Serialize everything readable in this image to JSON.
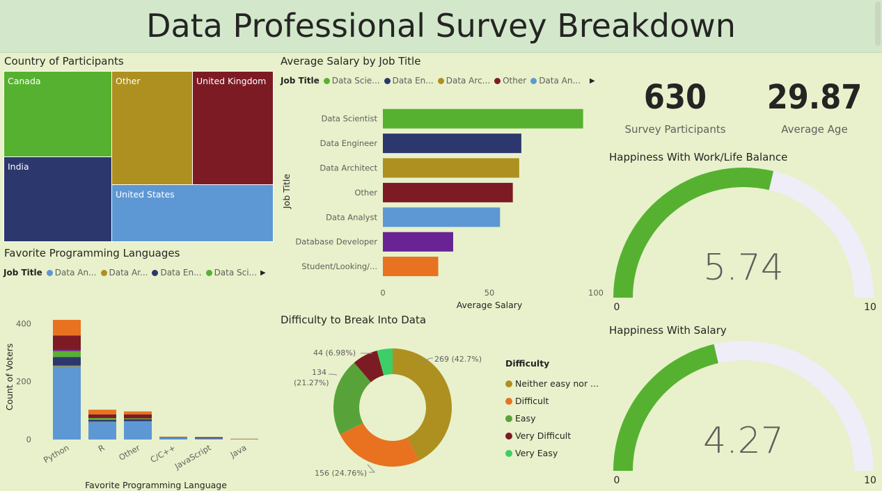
{
  "header": {
    "title": "Data Professional Survey Breakdown"
  },
  "colors": {
    "green": "#57b130",
    "navy": "#2c376d",
    "gold": "#ad9020",
    "maroon": "#7d1b24",
    "blue": "#5d98d4",
    "purple": "#6a2395",
    "orange": "#e87220",
    "lightgreen": "#3dcf67",
    "gaugeTrack": "#efedf8"
  },
  "country": {
    "title": "Country of Participants",
    "cells": [
      {
        "label": "Canada"
      },
      {
        "label": "Other"
      },
      {
        "label": "United Kingdom"
      },
      {
        "label": "India"
      },
      {
        "label": "United States"
      }
    ]
  },
  "kpis": {
    "participants": {
      "value": "630",
      "label": "Survey Participants"
    },
    "age": {
      "value": "29.87",
      "label": "Average Age"
    }
  },
  "salaryLegend": {
    "title": "Job Title",
    "items": [
      {
        "label": "Data Scie...",
        "color": "#57b130"
      },
      {
        "label": "Data En...",
        "color": "#2c376d"
      },
      {
        "label": "Data Arc...",
        "color": "#ad9020"
      },
      {
        "label": "Other",
        "color": "#7d1b24"
      },
      {
        "label": "Data An...",
        "color": "#5d98d4"
      }
    ]
  },
  "langLegend": {
    "title": "Job Title",
    "items": [
      {
        "label": "Data An...",
        "color": "#5d98d4"
      },
      {
        "label": "Data Ar...",
        "color": "#ad9020"
      },
      {
        "label": "Data En...",
        "color": "#2c376d"
      },
      {
        "label": "Data Sci...",
        "color": "#57b130"
      }
    ]
  },
  "chart_data": [
    {
      "id": "salary",
      "type": "bar",
      "orientation": "horizontal",
      "title": "Average Salary by Job Title",
      "categories": [
        "Data Scientist",
        "Data Engineer",
        "Data Architect",
        "Other",
        "Data Analyst",
        "Database Developer",
        "Student/Looking/..."
      ],
      "values": [
        94,
        65,
        64,
        61,
        55,
        33,
        26
      ],
      "colors": [
        "#57b130",
        "#2c376d",
        "#ad9020",
        "#7d1b24",
        "#5d98d4",
        "#6a2395",
        "#e87220"
      ],
      "xlabel": "Average Salary",
      "ylabel": "Job Title",
      "xlim": [
        0,
        100
      ],
      "xticks": [
        "0",
        "50",
        "100"
      ]
    },
    {
      "id": "languages",
      "type": "bar",
      "stacked": true,
      "title": "Favorite Programming Languages",
      "categories": [
        "Python",
        "R",
        "Other",
        "C/C++",
        "JavaScript",
        "Java"
      ],
      "series": [
        {
          "name": "Data Analyst",
          "color": "#5d98d4",
          "values": [
            252,
            60,
            62,
            6,
            4,
            2
          ]
        },
        {
          "name": "Data Architect",
          "color": "#ad9020",
          "values": [
            3,
            2,
            1,
            0,
            0,
            0
          ]
        },
        {
          "name": "Data Engineer",
          "color": "#2c376d",
          "values": [
            30,
            6,
            7,
            1,
            1,
            0
          ]
        },
        {
          "name": "Data Scientist",
          "color": "#57b130",
          "values": [
            20,
            6,
            3,
            1,
            0,
            0
          ]
        },
        {
          "name": "Database Developer",
          "color": "#6a2395",
          "values": [
            4,
            0,
            0,
            0,
            0,
            0
          ]
        },
        {
          "name": "Other",
          "color": "#7d1b24",
          "values": [
            50,
            13,
            14,
            1,
            3,
            0
          ]
        },
        {
          "name": "Student/Looking",
          "color": "#e87220",
          "values": [
            54,
            16,
            10,
            1,
            1,
            1
          ]
        }
      ],
      "xlabel": "Favorite Programming Language",
      "ylabel": "Count of Voters",
      "ylim": [
        0,
        420
      ],
      "yticks": [
        0,
        200,
        400
      ]
    },
    {
      "id": "difficulty",
      "type": "pie",
      "donut": true,
      "title": "Difficulty to Break Into Data",
      "legend_title": "Difficulty",
      "slices": [
        {
          "label": "Neither easy nor ...",
          "value": 269,
          "color": "#ad9020",
          "text": "269 (42.7%)"
        },
        {
          "label": "Difficult",
          "value": 156,
          "color": "#e87220",
          "text": "156 (24.76%)"
        },
        {
          "label": "Easy",
          "value": 134,
          "color": "#57a33a",
          "text": "134 (21.27%)"
        },
        {
          "label": "Very Difficult",
          "value": 44,
          "color": "#7d1b24",
          "text": "44 (6.98%)"
        },
        {
          "label": "Very Easy",
          "value": 27,
          "color": "#3dcf67",
          "text": ""
        }
      ],
      "label_134_line1": "134",
      "label_134_line2": "(21.27%)"
    },
    {
      "id": "gauge-wlb",
      "type": "gauge",
      "title": "Happiness With Work/Life Balance",
      "value": 5.74,
      "value_text": "5.74",
      "min": 0,
      "max": 10,
      "min_text": "0",
      "max_text": "10"
    },
    {
      "id": "gauge-salary",
      "type": "gauge",
      "title": "Happiness With Salary",
      "value": 4.27,
      "value_text": "4.27",
      "min": 0,
      "max": 10,
      "min_text": "0",
      "max_text": "10"
    }
  ]
}
